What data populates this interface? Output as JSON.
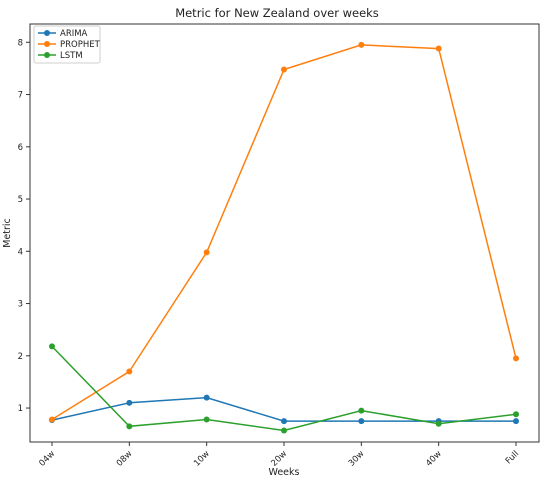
{
  "chart_data": {
    "type": "line",
    "title": "Metric for New Zealand over weeks",
    "xlabel": "Weeks",
    "ylabel": "Metric",
    "categories": [
      "04w",
      "08w",
      "10w",
      "20w",
      "30w",
      "40w",
      "Full"
    ],
    "y_ticks": [
      1,
      2,
      3,
      4,
      5,
      6,
      7,
      8
    ],
    "ylim": [
      0.35,
      8.35
    ],
    "grid": false,
    "legend_position": "top-left",
    "series": [
      {
        "name": "ARIMA",
        "color": "#1f77b4",
        "values": [
          0.77,
          1.1,
          1.2,
          0.75,
          0.75,
          0.75,
          0.75
        ]
      },
      {
        "name": "PROPHET",
        "color": "#ff7f0e",
        "values": [
          0.78,
          1.7,
          3.98,
          7.48,
          7.95,
          7.88,
          1.95
        ]
      },
      {
        "name": "LSTM",
        "color": "#2ca02c",
        "values": [
          2.18,
          0.65,
          0.78,
          0.57,
          0.95,
          0.7,
          0.88
        ]
      }
    ]
  }
}
